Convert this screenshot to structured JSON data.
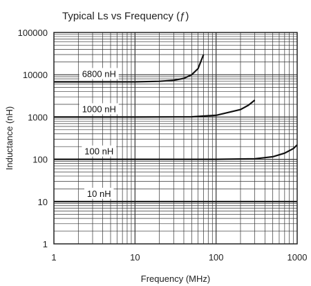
{
  "chart_data": {
    "type": "line",
    "title": "Typical Ls vs Frequency (ƒ)",
    "xlabel": "Frequency (MHz)",
    "ylabel": "Inductance (nH)",
    "x_scale": "log",
    "y_scale": "log",
    "xlim": [
      1,
      1000
    ],
    "ylim": [
      1,
      100000
    ],
    "x_ticks": [
      "1",
      "10",
      "100",
      "1000"
    ],
    "y_ticks": [
      "1",
      "10",
      "100",
      "1000",
      "10000",
      "100000"
    ],
    "grid": true,
    "series": [
      {
        "name": "6800 nH",
        "x": [
          1,
          10,
          20,
          30,
          40,
          50,
          60,
          70
        ],
        "y": [
          6800,
          6800,
          7000,
          7400,
          8200,
          10000,
          14000,
          30000
        ]
      },
      {
        "name": "1000 nH",
        "x": [
          1,
          10,
          50,
          100,
          200,
          250,
          300
        ],
        "y": [
          1000,
          1000,
          1010,
          1100,
          1500,
          1900,
          2500
        ]
      },
      {
        "name": "100 nH",
        "x": [
          1,
          10,
          100,
          300,
          500,
          700,
          900,
          1000
        ],
        "y": [
          100,
          100,
          100,
          103,
          115,
          140,
          180,
          220
        ]
      },
      {
        "name": "10 nH",
        "x": [
          1,
          10,
          100,
          1000
        ],
        "y": [
          10,
          10,
          10,
          10
        ]
      }
    ]
  }
}
